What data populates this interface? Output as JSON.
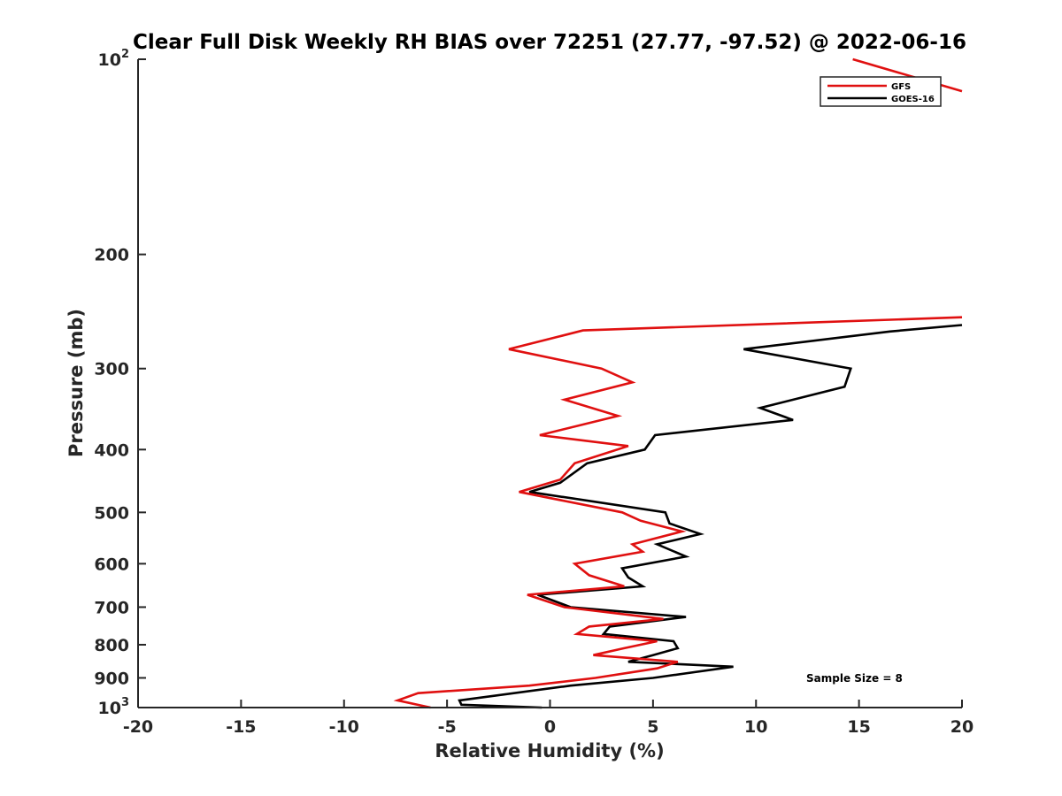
{
  "chart_data": {
    "type": "line",
    "title": "Clear Full Disk Weekly RH BIAS over 72251 (27.77, -97.52) @ 2022-06-16",
    "xlabel": "Relative Humidity (%)",
    "ylabel": "Pressure (mb)",
    "xlim": [
      -20,
      20
    ],
    "ylim": [
      1000,
      100
    ],
    "y_scale": "log",
    "y_reversed": true,
    "grid": false,
    "xticks": [
      "-20",
      "-15",
      "-10",
      "-5",
      "0",
      "5",
      "10",
      "15",
      "20"
    ],
    "yticks": [
      {
        "value": 100,
        "base": "10",
        "exp": "2"
      },
      {
        "value": 200,
        "base": "200",
        "exp": ""
      },
      {
        "value": 300,
        "base": "300",
        "exp": ""
      },
      {
        "value": 400,
        "base": "400",
        "exp": ""
      },
      {
        "value": 500,
        "base": "500",
        "exp": ""
      },
      {
        "value": 600,
        "base": "600",
        "exp": ""
      },
      {
        "value": 700,
        "base": "700",
        "exp": ""
      },
      {
        "value": 800,
        "base": "800",
        "exp": ""
      },
      {
        "value": 900,
        "base": "900",
        "exp": ""
      },
      {
        "value": 1000,
        "base": "10",
        "exp": "3"
      }
    ],
    "legend_position": "top-right",
    "annotation": "Sample Size = 8",
    "series": [
      {
        "name": "GFS",
        "color": "#e01010",
        "points": [
          [
            -5.8,
            1000
          ],
          [
            -7.4,
            975
          ],
          [
            -6.4,
            950
          ],
          [
            -1.0,
            925
          ],
          [
            2.2,
            900
          ],
          [
            5.2,
            870
          ],
          [
            6.2,
            850
          ],
          [
            2.1,
            830
          ],
          [
            3.6,
            810
          ],
          [
            5.2,
            790
          ],
          [
            1.3,
            770
          ],
          [
            1.9,
            750
          ],
          [
            5.5,
            730
          ],
          [
            0.7,
            700
          ],
          [
            -1.1,
            670
          ],
          [
            3.6,
            650
          ],
          [
            1.9,
            625
          ],
          [
            1.2,
            600
          ],
          [
            4.5,
            575
          ],
          [
            4.0,
            560
          ],
          [
            6.4,
            535
          ],
          [
            4.4,
            515
          ],
          [
            3.5,
            500
          ],
          [
            -1.5,
            465
          ],
          [
            0.5,
            445
          ],
          [
            1.2,
            420
          ],
          [
            3.8,
            395
          ],
          [
            -0.5,
            380
          ],
          [
            3.3,
            355
          ],
          [
            0.7,
            335
          ],
          [
            4.0,
            315
          ],
          [
            2.5,
            300
          ],
          [
            -2.0,
            280
          ],
          [
            1.6,
            262
          ],
          [
            20.0,
            250
          ]
        ]
      },
      {
        "name": "GOES-16",
        "color": "#000000",
        "points": [
          [
            -0.4,
            1000
          ],
          [
            -4.3,
            990
          ],
          [
            -4.4,
            975
          ],
          [
            1.0,
            925
          ],
          [
            5.0,
            900
          ],
          [
            8.9,
            865
          ],
          [
            3.8,
            850
          ],
          [
            5.0,
            830
          ],
          [
            6.2,
            810
          ],
          [
            6.0,
            790
          ],
          [
            2.6,
            770
          ],
          [
            2.9,
            750
          ],
          [
            6.6,
            725
          ],
          [
            1.0,
            700
          ],
          [
            -0.6,
            670
          ],
          [
            4.5,
            650
          ],
          [
            3.8,
            630
          ],
          [
            3.5,
            610
          ],
          [
            6.6,
            585
          ],
          [
            5.2,
            560
          ],
          [
            7.3,
            540
          ],
          [
            5.8,
            520
          ],
          [
            5.6,
            500
          ],
          [
            -1.0,
            465
          ],
          [
            0.5,
            450
          ],
          [
            1.8,
            420
          ],
          [
            4.6,
            400
          ],
          [
            5.1,
            380
          ],
          [
            11.8,
            360
          ],
          [
            10.2,
            345
          ],
          [
            14.3,
            320
          ],
          [
            14.6,
            300
          ],
          [
            9.4,
            280
          ],
          [
            16.5,
            263
          ],
          [
            20.0,
            257
          ]
        ]
      }
    ],
    "offscale_segment": {
      "name": "GFS",
      "points": [
        [
          14.7,
          100
        ],
        [
          20.0,
          112
        ]
      ]
    }
  }
}
